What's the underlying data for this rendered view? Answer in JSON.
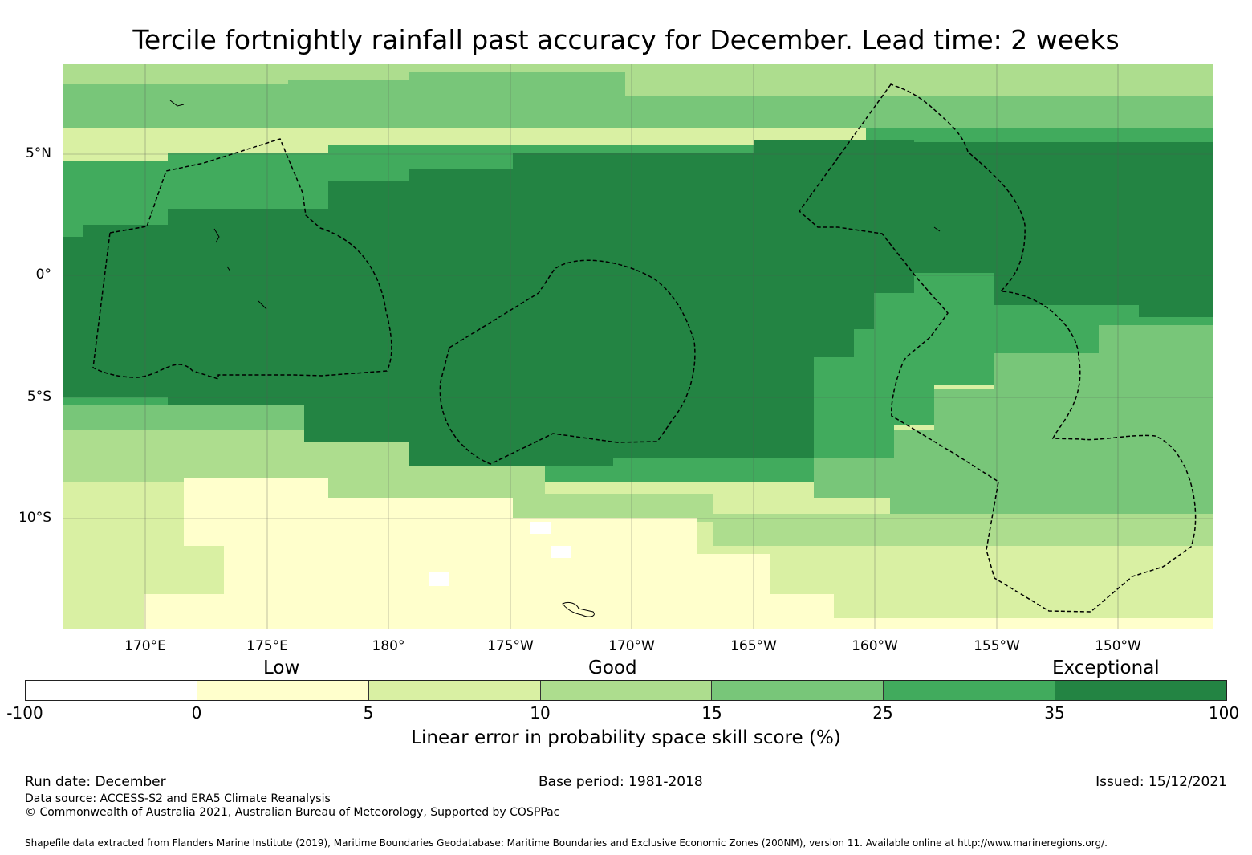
{
  "title": "Tercile fortnightly rainfall past accuracy for December. Lead time: 2 weeks",
  "map": {
    "lat_labels": [
      "5°N",
      "0°",
      "5°S",
      "10°S"
    ],
    "lon_labels": [
      "170°E",
      "175°E",
      "180°",
      "175°W",
      "170°W",
      "165°W",
      "160°W",
      "155°W",
      "150°W"
    ],
    "quality_labels": [
      "Low",
      "Good",
      "Exceptional"
    ],
    "grid_color": "#555555",
    "boundary_color": "#000000"
  },
  "colorbar": {
    "ticks": [
      "-100",
      "0",
      "5",
      "10",
      "15",
      "25",
      "35",
      "100"
    ],
    "colors": [
      "#ffffff",
      "#ffffcc",
      "#d9f0a3",
      "#addd8e",
      "#78c679",
      "#41ab5d",
      "#238443"
    ],
    "axis_label": "Linear error in probability space skill score (%)"
  },
  "footer": {
    "run_date": "Run date: December",
    "base_period": "Base period: 1981-2018",
    "issued": "Issued: 15/12/2021",
    "data_source": "Data source: ACCESS-S2 and ERA5 Climate Reanalysis",
    "copyright": "© Commonwealth of Australia 2021, Australian Bureau of Meteorology, Supported by COSPPac",
    "shapefile": "Shapefile data extracted from Flanders Marine Institute (2019), Maritime Boundaries Geodatabase: Maritime Boundaries and Exclusive Economic Zones (200NM), version 11. Available online at http://www.marineregions.org/."
  }
}
